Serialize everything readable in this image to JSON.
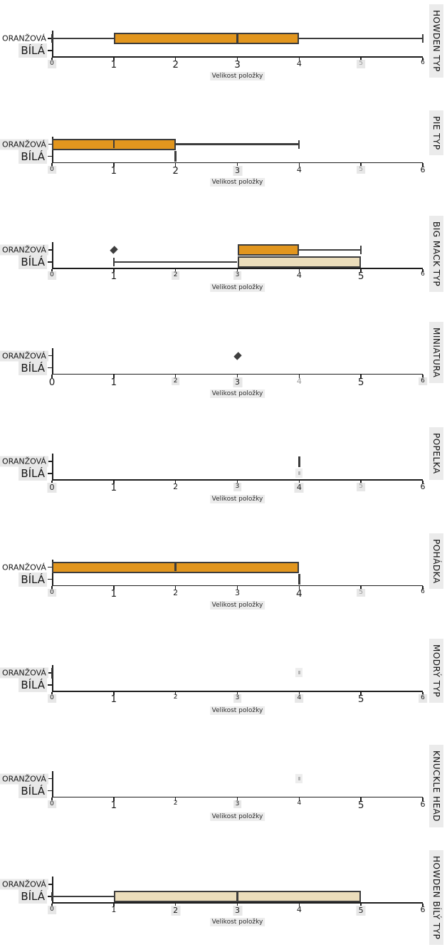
{
  "chart_data": {
    "type": "boxplot",
    "orientation": "horizontal",
    "xlabel": "Velikost položky",
    "xlim": [
      0,
      6
    ],
    "x_ticks": [
      0,
      1,
      2,
      3,
      4,
      5,
      6
    ],
    "categories": [
      "ORANŽOVÁ",
      "BÍLÁ"
    ],
    "colors": {
      "oranzova_fill": "#e2961e",
      "bila_fill": "#ebddbb",
      "edge": "#3c3c3c",
      "strip_bg": "#ebebeb",
      "label_bg": "#e8e8e8"
    },
    "panels": [
      {
        "title": "HOWDEN TYP",
        "label_bg": [
          false,
          true
        ],
        "series": [
          {
            "name": "ORANŽOVÁ",
            "box": {
              "whislo": 0,
              "q1": 1,
              "med": 3,
              "q3": 4,
              "whishi": 6
            },
            "marks": []
          },
          {
            "name": "BÍLÁ",
            "box": null,
            "marks": []
          }
        ],
        "ticks": [
          {
            "v": 0,
            "s": "sm",
            "bg": true
          },
          {
            "v": 1,
            "s": "lg"
          },
          {
            "v": 2,
            "s": "lg"
          },
          {
            "v": 3,
            "s": "lg"
          },
          {
            "v": 4,
            "s": "md"
          },
          {
            "v": 5,
            "s": "sm",
            "bg": true,
            "f": true
          },
          {
            "v": 6,
            "s": "sm"
          }
        ]
      },
      {
        "title": "PIE TYP",
        "label_bg": [
          true,
          true
        ],
        "series": [
          {
            "name": "ORANŽOVÁ",
            "box": {
              "whislo": 0,
              "q1": 0,
              "med": 1,
              "q3": 2,
              "whishi": 4
            },
            "marks": []
          },
          {
            "name": "BÍLÁ",
            "box": null,
            "marks": [
              {
                "kind": "line",
                "v": 2
              }
            ]
          }
        ],
        "ticks": [
          {
            "v": 0,
            "s": "sm",
            "bg": true
          },
          {
            "v": 1,
            "s": "lg"
          },
          {
            "v": 2,
            "s": "lg"
          },
          {
            "v": 3,
            "s": "md",
            "bg": true
          },
          {
            "v": 4,
            "s": "md"
          },
          {
            "v": 5,
            "s": "sm",
            "bg": true,
            "f": true
          },
          {
            "v": 6,
            "s": "md"
          }
        ]
      },
      {
        "title": "BIG MACK TYP",
        "label_bg": [
          true,
          true
        ],
        "series": [
          {
            "name": "ORANŽOVÁ",
            "box": {
              "whislo": 3,
              "q1": 3,
              "med": null,
              "q3": 4,
              "whishi": 5
            },
            "marks": [
              {
                "kind": "diamond",
                "v": 1
              }
            ]
          },
          {
            "name": "BÍLÁ",
            "box": {
              "whislo": 1,
              "q1": 3,
              "med": null,
              "q3": 5,
              "whishi": 5
            },
            "marks": []
          }
        ],
        "ticks": [
          {
            "v": 0,
            "s": "sm",
            "bg": true
          },
          {
            "v": 1,
            "s": "lg"
          },
          {
            "v": 2,
            "s": "sm",
            "bg": true
          },
          {
            "v": 3,
            "s": "sm",
            "bg": true
          },
          {
            "v": 4,
            "s": "md"
          },
          {
            "v": 5,
            "s": "lg"
          },
          {
            "v": 6,
            "s": "sm"
          }
        ]
      },
      {
        "title": "MINIATURA",
        "label_bg": [
          true,
          true
        ],
        "series": [
          {
            "name": "ORANŽOVÁ",
            "box": null,
            "marks": [
              {
                "kind": "diamond",
                "v": 3
              }
            ]
          },
          {
            "name": "BÍLÁ",
            "box": null,
            "marks": []
          }
        ],
        "ticks": [
          {
            "v": 0,
            "s": "lg"
          },
          {
            "v": 1,
            "s": "lg"
          },
          {
            "v": 2,
            "s": "sm",
            "bg": true
          },
          {
            "v": 3,
            "s": "md",
            "bg": true
          },
          {
            "v": 4,
            "s": "md",
            "f": true
          },
          {
            "v": 5,
            "s": "lg"
          },
          {
            "v": 6,
            "s": "sm",
            "bg": true
          }
        ]
      },
      {
        "title": "POPELKA",
        "label_bg": [
          true,
          true
        ],
        "series": [
          {
            "name": "ORANŽOVÁ",
            "box": null,
            "marks": [
              {
                "kind": "line",
                "v": 4
              }
            ]
          },
          {
            "name": "BÍLÁ",
            "box": null,
            "marks": [
              {
                "kind": "dot",
                "v": 4
              }
            ]
          }
        ],
        "ticks": [
          {
            "v": 0,
            "s": "md",
            "bg": true
          },
          {
            "v": 1,
            "s": "lg"
          },
          {
            "v": 2,
            "s": "md"
          },
          {
            "v": 3,
            "s": "sm",
            "bg": true
          },
          {
            "v": 4,
            "s": "md",
            "bg": true
          },
          {
            "v": 5,
            "s": "sm",
            "bg": true,
            "f": true
          },
          {
            "v": 6,
            "s": "md"
          }
        ]
      },
      {
        "title": "POHÁDKA",
        "label_bg": [
          false,
          true
        ],
        "series": [
          {
            "name": "ORANŽOVÁ",
            "box": {
              "whislo": 0,
              "q1": 0,
              "med": 2,
              "q3": 4,
              "whishi": 4
            },
            "marks": []
          },
          {
            "name": "BÍLÁ",
            "box": null,
            "marks": [
              {
                "kind": "line",
                "v": 4
              }
            ]
          }
        ],
        "ticks": [
          {
            "v": 0,
            "s": "sm",
            "bg": true
          },
          {
            "v": 1,
            "s": "lg"
          },
          {
            "v": 2,
            "s": "md"
          },
          {
            "v": 3,
            "s": "md"
          },
          {
            "v": 4,
            "s": "lg"
          },
          {
            "v": 5,
            "s": "sm",
            "bg": true,
            "f": true
          },
          {
            "v": 6,
            "s": "sm"
          }
        ]
      },
      {
        "title": "MODRÝ TYP",
        "label_bg": [
          true,
          true
        ],
        "series": [
          {
            "name": "ORANŽOVÁ",
            "box": null,
            "marks": [
              {
                "kind": "line",
                "v": 0
              },
              {
                "kind": "dot",
                "v": 4
              }
            ]
          },
          {
            "name": "BÍLÁ",
            "box": null,
            "marks": []
          }
        ],
        "ticks": [
          {
            "v": 0,
            "s": "sm",
            "bg": true
          },
          {
            "v": 1,
            "s": "lg"
          },
          {
            "v": 2,
            "s": "sm"
          },
          {
            "v": 3,
            "s": "sm",
            "bg": true
          },
          {
            "v": 4,
            "s": "sm",
            "bg": true
          },
          {
            "v": 5,
            "s": "lg"
          },
          {
            "v": 6,
            "s": "sm",
            "bg": true
          }
        ]
      },
      {
        "title": "KNUCKLE HEAD",
        "label_bg": [
          true,
          true
        ],
        "series": [
          {
            "name": "ORANŽOVÁ",
            "box": null,
            "marks": [
              {
                "kind": "dot",
                "v": 4
              }
            ]
          },
          {
            "name": "BÍLÁ",
            "box": null,
            "marks": []
          }
        ],
        "ticks": [
          {
            "v": 0,
            "s": "sm",
            "bg": true
          },
          {
            "v": 1,
            "s": "lg"
          },
          {
            "v": 2,
            "s": "sm"
          },
          {
            "v": 3,
            "s": "sm",
            "bg": true
          },
          {
            "v": 4,
            "s": "sm"
          },
          {
            "v": 5,
            "s": "lg"
          },
          {
            "v": 6,
            "s": "md"
          }
        ]
      },
      {
        "title": "HOWDEN BÍLÝ TYP",
        "label_bg": [
          true,
          true
        ],
        "series": [
          {
            "name": "ORANŽOVÁ",
            "box": null,
            "marks": []
          },
          {
            "name": "BÍLÁ",
            "box": {
              "whislo": 0,
              "q1": 1,
              "med": 3,
              "q3": 5,
              "whishi": 5
            },
            "marks": []
          }
        ],
        "ticks": [
          {
            "v": 0,
            "s": "sm",
            "bg": true
          },
          {
            "v": 1,
            "s": "md"
          },
          {
            "v": 2,
            "s": "md",
            "bg": true
          },
          {
            "v": 3,
            "s": "md",
            "bg": true
          },
          {
            "v": 4,
            "s": "md"
          },
          {
            "v": 5,
            "s": "md",
            "bg": true
          },
          {
            "v": 6,
            "s": "md"
          }
        ]
      }
    ]
  }
}
